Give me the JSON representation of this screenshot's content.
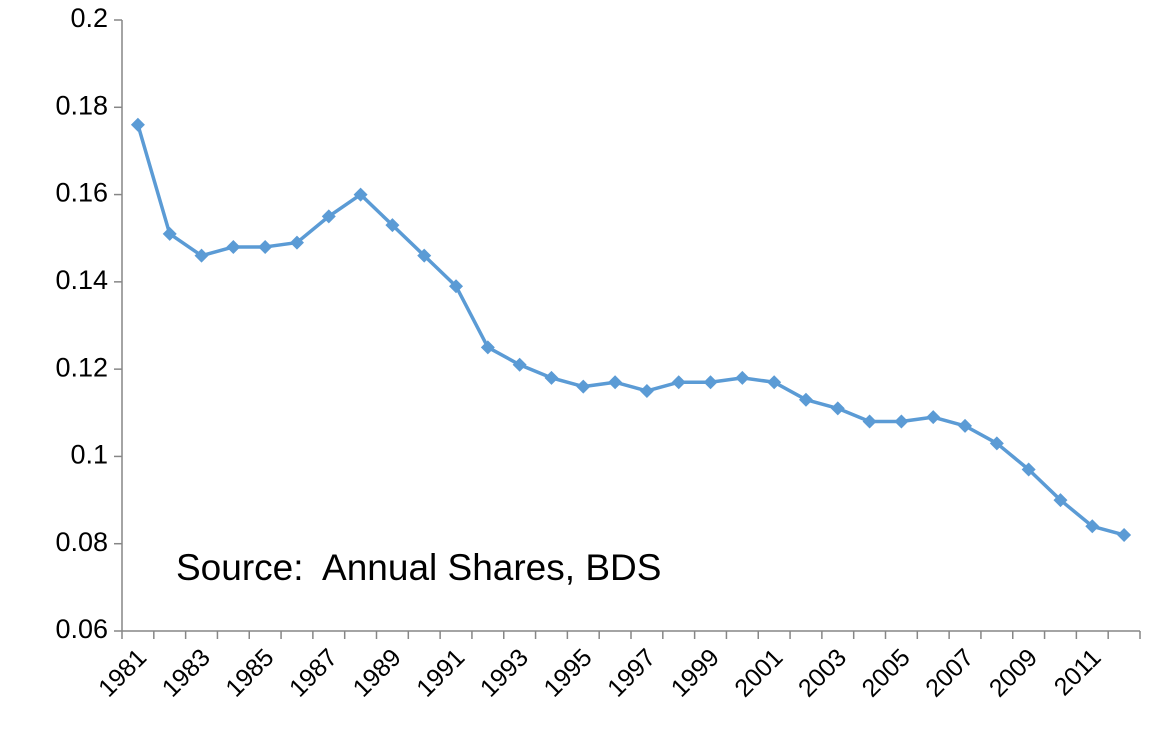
{
  "chart_data": {
    "type": "line",
    "annotation": "Source:  Annual Shares, BDS",
    "categories": [
      "1981",
      null,
      "1983",
      null,
      "1985",
      null,
      "1987",
      null,
      "1989",
      null,
      "1991",
      null,
      "1993",
      null,
      "1995",
      null,
      "1997",
      null,
      "1999",
      null,
      "2001",
      null,
      "2003",
      null,
      "2005",
      null,
      "2007",
      null,
      "2009",
      null,
      "2011",
      null
    ],
    "series": [
      {
        "color": "#5b9bd5",
        "values": [
          0.176,
          0.151,
          0.146,
          0.148,
          0.148,
          0.149,
          0.155,
          0.16,
          0.153,
          0.146,
          0.139,
          0.125,
          0.121,
          0.118,
          0.116,
          0.117,
          0.115,
          0.117,
          0.117,
          0.118,
          0.117,
          0.113,
          0.111,
          0.108,
          0.108,
          0.109,
          0.107,
          0.103,
          0.097,
          0.09,
          0.084,
          0.082
        ]
      }
    ],
    "ylim": [
      0.06,
      0.2
    ],
    "yticks": [
      0.06,
      0.08,
      0.1,
      0.12,
      0.14,
      0.16,
      0.18,
      0.2
    ],
    "grid": false
  }
}
